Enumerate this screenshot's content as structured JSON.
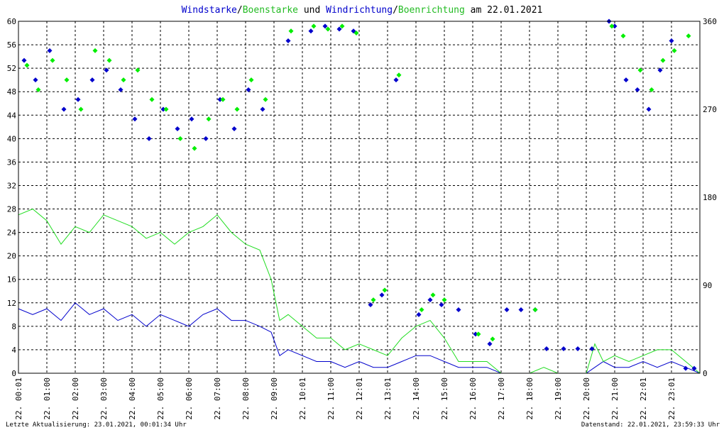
{
  "colors": {
    "wind": "#0000cc",
    "gust": "#22dd22",
    "gust_dir": "#00ee00",
    "wind_dir": "#0000cc",
    "grid": "#000000",
    "text": "#000000"
  },
  "title": {
    "part1": "Windstarke",
    "slash1": "/",
    "part2": "Boenstarke",
    "mid": " und ",
    "part3": "Windrichtung",
    "slash2": "/",
    "part4": "Boenrichtung",
    "tail": " am 22.01.2021"
  },
  "footer": {
    "left": "Letzte Aktualisierung: 23.01.2021, 00:01:34 Uhr",
    "right": "Datenstand: 22.01.2021, 23:59:33 Uhr"
  },
  "chart_data": {
    "type": "line",
    "x_unit": "hour of day",
    "xlim": [
      0,
      24
    ],
    "y_left_ticks": [
      0,
      4,
      8,
      12,
      16,
      20,
      24,
      28,
      32,
      36,
      40,
      44,
      48,
      52,
      56,
      60
    ],
    "ylim_left": [
      0,
      60
    ],
    "y_right_ticks": [
      0,
      90,
      180,
      270,
      360
    ],
    "ylim_right": [
      0,
      360
    ],
    "x_tick_labels": [
      "22. 00:01",
      "22. 01:00",
      "22. 02:00",
      "22. 03:00",
      "22. 04:00",
      "22. 05:00",
      "22. 06:00",
      "22. 07:00",
      "22. 08:00",
      "22. 09:00",
      "22. 10:01",
      "22. 11:00",
      "22. 12:01",
      "22. 13:01",
      "22. 14:00",
      "22. 15:00",
      "22. 16:00",
      "22. 17:00",
      "22. 18:00",
      "22. 19:00",
      "22. 20:00",
      "22. 21:00",
      "22. 22:01",
      "22. 23:01"
    ],
    "x_tick_hours": [
      0,
      1,
      2,
      3,
      4,
      5,
      6,
      7,
      8,
      9,
      10,
      11,
      12,
      13,
      14,
      15,
      16,
      17,
      18,
      19,
      20,
      21,
      22,
      23
    ],
    "grid": true,
    "series": [
      {
        "name": "Windstarke",
        "axis": "left",
        "style": "line",
        "x": [
          0,
          0.5,
          1,
          1.5,
          2,
          2.5,
          3,
          3.5,
          4,
          4.5,
          5,
          5.5,
          6,
          6.5,
          7,
          7.5,
          8,
          8.5,
          8.9,
          9.2,
          9.5,
          10,
          10.5,
          11,
          11.5,
          12,
          12.5,
          13,
          13.5,
          14,
          14.5,
          15,
          15.5,
          16,
          16.5,
          17,
          17.5,
          18,
          18.5,
          19,
          19.5,
          20,
          20.3,
          20.6,
          21,
          21.5,
          22,
          22.5,
          23,
          23.5,
          24
        ],
        "y": [
          11,
          10,
          11,
          9,
          12,
          10,
          11,
          9,
          10,
          8,
          10,
          9,
          8,
          10,
          11,
          9,
          9,
          8,
          7,
          3,
          4,
          3,
          2,
          2,
          1,
          2,
          1,
          1,
          2,
          3,
          3,
          2,
          1,
          1,
          1,
          0,
          0,
          0,
          0,
          0,
          0,
          0,
          1,
          2,
          1,
          1,
          2,
          1,
          2,
          1,
          0
        ]
      },
      {
        "name": "Boenstarke",
        "axis": "left",
        "style": "line",
        "x": [
          0,
          0.5,
          1,
          1.5,
          2,
          2.5,
          3,
          3.5,
          4,
          4.5,
          5,
          5.5,
          6,
          6.5,
          7,
          7.5,
          8,
          8.5,
          8.9,
          9.2,
          9.5,
          10,
          10.5,
          11,
          11.5,
          12,
          12.5,
          13,
          13.5,
          14,
          14.5,
          15,
          15.5,
          16,
          16.5,
          17,
          17.5,
          18,
          18.5,
          19,
          19.5,
          20,
          20.3,
          20.6,
          21,
          21.5,
          22,
          22.5,
          23,
          23.5,
          24
        ],
        "y": [
          27,
          28,
          26,
          22,
          25,
          24,
          27,
          26,
          25,
          23,
          24,
          22,
          24,
          25,
          27,
          24,
          22,
          21,
          16,
          9,
          10,
          8,
          6,
          6,
          4,
          5,
          4,
          3,
          6,
          8,
          9,
          6,
          2,
          2,
          2,
          0,
          0,
          0,
          1,
          0,
          0,
          0,
          5,
          2,
          3,
          2,
          3,
          4,
          4,
          2,
          0
        ]
      },
      {
        "name": "Windrichtung",
        "axis": "right",
        "style": "markers",
        "x": [
          0.2,
          0.6,
          1.1,
          1.6,
          2.1,
          2.6,
          3.1,
          3.6,
          4.1,
          4.6,
          5.1,
          5.6,
          6.1,
          6.6,
          7.1,
          7.6,
          8.1,
          8.6,
          9.5,
          10.3,
          10.8,
          11.3,
          11.8,
          12.4,
          12.8,
          13.3,
          14.1,
          14.5,
          14.9,
          15.5,
          16.1,
          16.6,
          17.2,
          17.7,
          18.2,
          18.6,
          19.2,
          19.7,
          20.2,
          20.8,
          21.0,
          21.4,
          21.8,
          22.2,
          22.6,
          23.0,
          23.5,
          23.8
        ],
        "y": [
          320,
          300,
          330,
          270,
          280,
          300,
          310,
          290,
          260,
          240,
          270,
          250,
          260,
          240,
          280,
          250,
          290,
          270,
          340,
          350,
          355,
          352,
          350,
          70,
          80,
          300,
          60,
          75,
          70,
          65,
          40,
          30,
          65,
          65,
          65,
          25,
          25,
          25,
          25,
          360,
          355,
          300,
          290,
          270,
          310,
          340,
          5,
          5
        ]
      },
      {
        "name": "Boenrichtung",
        "axis": "right",
        "style": "markers",
        "x": [
          0.3,
          0.7,
          1.2,
          1.7,
          2.2,
          2.7,
          3.2,
          3.7,
          4.2,
          4.7,
          5.2,
          5.7,
          6.2,
          6.7,
          7.2,
          7.7,
          8.2,
          8.7,
          9.6,
          10.4,
          10.9,
          11.4,
          11.9,
          12.5,
          12.9,
          13.4,
          14.2,
          14.6,
          15.0,
          16.2,
          16.7,
          18.2,
          20.9,
          21.3,
          21.9,
          22.3,
          22.7,
          23.1,
          23.6
        ],
        "y": [
          315,
          290,
          320,
          300,
          270,
          330,
          320,
          300,
          310,
          280,
          270,
          240,
          230,
          260,
          280,
          270,
          300,
          280,
          350,
          355,
          352,
          355,
          348,
          75,
          85,
          305,
          65,
          80,
          75,
          40,
          35,
          65,
          355,
          345,
          310,
          290,
          320,
          330,
          345
        ]
      }
    ]
  }
}
